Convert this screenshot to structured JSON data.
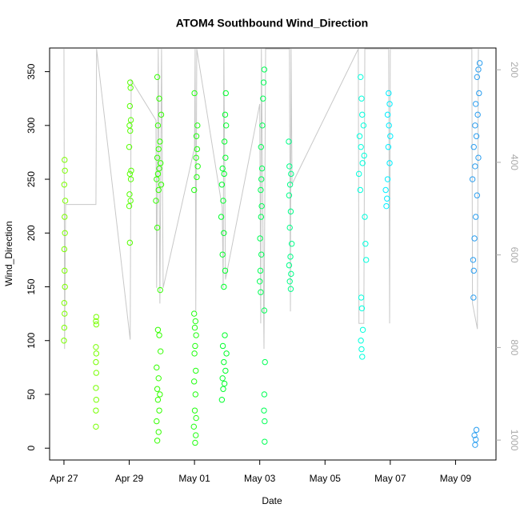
{
  "chart_data": {
    "type": "scatter",
    "title": "ATOM4 Southbound Wind_Direction",
    "x_label": "Date",
    "y_label": "Wind_Direction",
    "xlim": [
      -0.44,
      13.24
    ],
    "ylim": [
      -11,
      372
    ],
    "y2lim": [
      1043,
      153
    ],
    "xticks": [
      {
        "value": 0,
        "label": "Apr 27"
      },
      {
        "value": 2,
        "label": "Apr 29"
      },
      {
        "value": 4,
        "label": "May 01"
      },
      {
        "value": 6,
        "label": "May 03"
      },
      {
        "value": 8,
        "label": "May 05"
      },
      {
        "value": 10,
        "label": "May 07"
      },
      {
        "value": 12,
        "label": "May 09"
      }
    ],
    "yticks": [
      0,
      50,
      100,
      150,
      200,
      250,
      300,
      350
    ],
    "y2ticks": [
      200,
      400,
      600,
      800,
      1000
    ],
    "y2_color": "#aaaaaa",
    "series": [
      {
        "type": "line",
        "axis": "y2",
        "color": "#c8c8c8",
        "x": [
          0,
          0.02,
          0.05,
          0.98,
          1.0,
          2.03,
          2.06,
          2.82,
          2.84,
          2.89,
          2.94,
          2.99,
          3.04,
          4.0,
          4.02,
          4.04,
          4.07,
          4.85,
          4.88,
          4.9,
          4.95,
          6.0,
          6.03,
          6.05,
          6.13,
          6.18,
          6.27,
          6.91,
          6.94,
          6.96,
          6.99,
          9.02,
          9.04,
          9.19,
          9.22,
          9.95,
          9.98,
          10.0,
          12.5,
          12.52,
          12.67,
          12.7
        ],
        "values": [
          155,
          803,
          491,
          491,
          155,
          783,
          222,
          309,
          671,
          155,
          705,
          155,
          671,
          369,
          155,
          722,
          155,
          498,
          671,
          155,
          653,
          274,
          748,
          155,
          803,
          155,
          155,
          155,
          722,
          155,
          447,
          155,
          748,
          748,
          155,
          155,
          748,
          155,
          155,
          705,
          760,
          155
        ]
      },
      {
        "color": "#7cff00",
        "x": [
          0,
          0.01,
          0.02,
          0.01,
          0.03,
          0.02,
          0.01,
          0.03,
          0.02,
          0.04,
          0.01,
          0.03,
          0.02
        ],
        "values": [
          100,
          112,
          125,
          135,
          150,
          165,
          185,
          200,
          215,
          230,
          245,
          258,
          268
        ]
      },
      {
        "color": "#77ff00",
        "x": [
          0.98,
          0.98,
          0.99,
          0.98,
          0.99,
          0.98,
          0.99,
          0.98,
          0.99,
          0.98,
          0.99
        ],
        "values": [
          20,
          35,
          45,
          56,
          70,
          80,
          88,
          94,
          115,
          118,
          122
        ]
      },
      {
        "color": "#55ff00",
        "x": [
          2.02,
          2.0,
          2.04,
          2.01,
          2.05,
          2.02,
          2.06,
          2.0,
          2.03,
          2.01,
          2.05,
          2.02,
          2.04,
          2.03
        ],
        "values": [
          191,
          225,
          230,
          236,
          250,
          255,
          258,
          280,
          295,
          300,
          305,
          318,
          335,
          340
        ]
      },
      {
        "color": "#33ff00",
        "x": [
          2.86,
          2.9,
          2.84,
          2.92,
          2.88,
          2.94,
          2.86,
          2.9,
          2.84,
          2.96,
          2.92,
          2.88,
          2.95,
          2.86,
          2.82,
          2.9,
          2.98,
          2.84,
          2.88,
          2.92,
          2.96,
          2.86,
          2.9,
          2.94,
          2.88,
          2.98,
          2.92,
          2.86
        ],
        "values": [
          7,
          15,
          25,
          35,
          45,
          50,
          55,
          65,
          75,
          90,
          105,
          110,
          147,
          205,
          230,
          240,
          245,
          250,
          255,
          260,
          265,
          270,
          278,
          285,
          300,
          310,
          325,
          345
        ]
      },
      {
        "color": "#22ff11",
        "x": [
          4.02,
          4.04,
          3.98,
          4.05,
          4.01,
          4.03,
          3.99,
          4.04,
          4.0,
          4.02,
          4.05,
          4.01,
          4.03,
          3.99,
          3.99,
          4.07,
          4.1,
          4.05,
          4.08,
          4.06,
          4.09,
          4.0
        ],
        "values": [
          5,
          12,
          20,
          28,
          35,
          50,
          62,
          72,
          88,
          95,
          105,
          112,
          118,
          125,
          240,
          252,
          262,
          270,
          278,
          290,
          300,
          330
        ]
      },
      {
        "color": "#00ff2b",
        "x": [
          4.84,
          4.88,
          4.92,
          4.86,
          4.95,
          4.9,
          4.98,
          4.87,
          4.93,
          4.9,
          4.94,
          4.86,
          4.9,
          4.82,
          4.88,
          4.84,
          4.91,
          4.86,
          4.95,
          4.92,
          4.97,
          4.94,
          4.96
        ],
        "values": [
          45,
          55,
          60,
          65,
          72,
          80,
          88,
          95,
          105,
          150,
          165,
          180,
          200,
          215,
          230,
          245,
          255,
          260,
          270,
          285,
          300,
          310,
          330
        ]
      },
      {
        "color": "#00ff55",
        "x": [
          6.15,
          6.15,
          6.13,
          6.14,
          6.16,
          6.14,
          6.03,
          6.0,
          6.02,
          6.05,
          6.01,
          6.04,
          6.06,
          6.03,
          6.05,
          6.07,
          6.04,
          6.08,
          6.1,
          6.12,
          6.14
        ],
        "values": [
          6,
          25,
          35,
          50,
          80,
          128,
          145,
          155,
          165,
          180,
          195,
          215,
          225,
          240,
          250,
          260,
          280,
          300,
          325,
          340,
          352
        ]
      },
      {
        "color": "#00ff88",
        "x": [
          6.95,
          6.92,
          6.96,
          6.9,
          6.94,
          6.98,
          6.92,
          6.95,
          6.9,
          6.93,
          6.96,
          6.91,
          6.89
        ],
        "values": [
          148,
          155,
          162,
          170,
          178,
          190,
          205,
          220,
          235,
          245,
          255,
          262,
          285
        ]
      },
      {
        "color": "#00ffdd",
        "x": [
          9.14,
          9.12,
          9.1,
          9.16,
          9.13,
          9.11,
          9.26,
          9.24,
          9.22,
          9.08,
          9.04,
          9.15,
          9.2,
          9.1,
          9.06,
          9.18,
          9.14,
          9.12,
          9.09
        ],
        "values": [
          85,
          92,
          100,
          110,
          130,
          140,
          175,
          190,
          215,
          240,
          255,
          265,
          272,
          280,
          290,
          300,
          310,
          325,
          345
        ]
      },
      {
        "color": "#00eeff",
        "x": [
          9.88,
          9.9,
          9.86,
          9.92,
          9.98,
          9.94,
          10.0,
          9.96,
          9.92,
          9.98,
          9.95
        ],
        "values": [
          225,
          232,
          240,
          250,
          265,
          280,
          290,
          300,
          310,
          320,
          330
        ]
      },
      {
        "color": "#2a9ef0",
        "x": [
          12.6,
          12.62,
          12.58,
          12.64,
          12.55,
          12.56,
          12.54,
          12.58,
          12.62,
          12.66,
          12.52,
          12.6,
          12.7,
          12.56,
          12.64,
          12.6,
          12.68,
          12.62,
          12.72,
          12.66,
          12.7,
          12.74
        ],
        "values": [
          3,
          8,
          12,
          17,
          140,
          165,
          175,
          195,
          215,
          235,
          250,
          262,
          270,
          280,
          290,
          300,
          310,
          320,
          330,
          345,
          352,
          358
        ]
      }
    ]
  }
}
